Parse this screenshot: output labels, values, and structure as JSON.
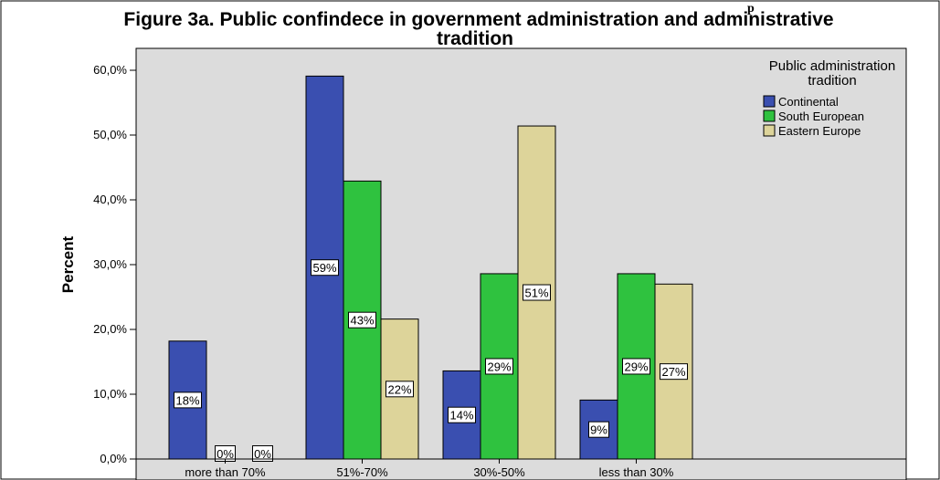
{
  "header_fragment": "p",
  "chart_data": {
    "type": "bar",
    "title_line1": "Figure 3a. Public confindece in government administration and administrative",
    "title_line2": "tradition",
    "ylabel": "Percent",
    "xlabel": "",
    "ylim": [
      0,
      60
    ],
    "yticks": [
      "0,0%",
      "10,0%",
      "20,0%",
      "30,0%",
      "40,0%",
      "50,0%",
      "60,0%"
    ],
    "categories": [
      "more than 70%",
      "51%-70%",
      "30%-50%",
      "less than 30%"
    ],
    "legend_title_line1": "Public administration",
    "legend_title_line2": "tradition",
    "legend_position": "right",
    "series": [
      {
        "name": "Continental",
        "color": "#3a4fb0",
        "values": [
          18.2,
          59.1,
          13.6,
          9.1
        ],
        "labels": [
          "18%",
          "59%",
          "14%",
          "9%"
        ]
      },
      {
        "name": "South European",
        "color": "#2fc23f",
        "values": [
          0,
          42.9,
          28.6,
          28.6
        ],
        "labels": [
          "0%",
          "43%",
          "29%",
          "29%"
        ]
      },
      {
        "name": "Eastern Europe",
        "color": "#ddd49a",
        "values": [
          0,
          21.6,
          51.4,
          27.0
        ],
        "labels": [
          "0%",
          "22%",
          "51%",
          "27%"
        ]
      }
    ],
    "plot_background": "#dcdcdc",
    "grid": false
  }
}
